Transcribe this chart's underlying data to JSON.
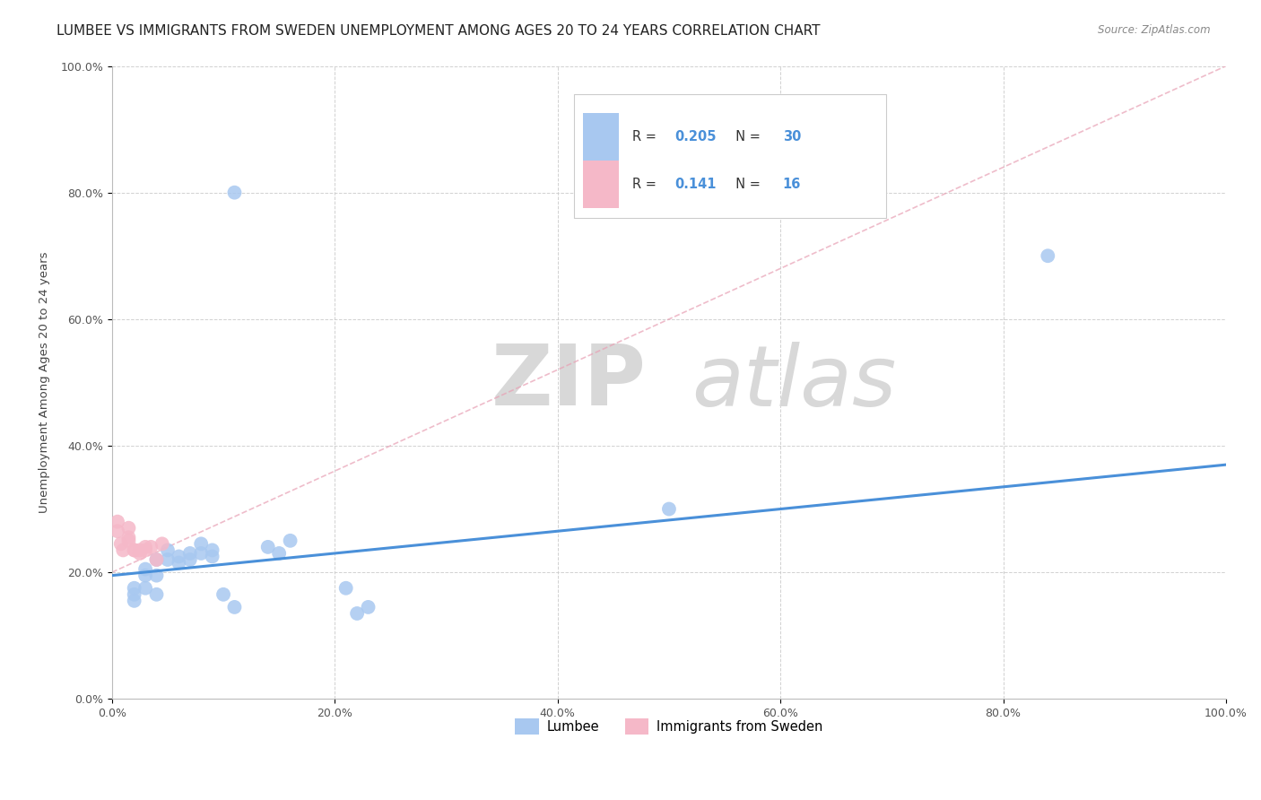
{
  "title": "LUMBEE VS IMMIGRANTS FROM SWEDEN UNEMPLOYMENT AMONG AGES 20 TO 24 YEARS CORRELATION CHART",
  "source": "Source: ZipAtlas.com",
  "ylabel": "Unemployment Among Ages 20 to 24 years",
  "xlabel": "",
  "watermark_zip": "ZIP",
  "watermark_atlas": "atlas",
  "xlim": [
    0.0,
    1.0
  ],
  "ylim": [
    0.0,
    1.0
  ],
  "xticks": [
    0.0,
    0.2,
    0.4,
    0.6,
    0.8,
    1.0
  ],
  "yticks": [
    0.0,
    0.2,
    0.4,
    0.6,
    0.8,
    1.0
  ],
  "xticklabels": [
    "0.0%",
    "20.0%",
    "40.0%",
    "60.0%",
    "80.0%",
    "100.0%"
  ],
  "yticklabels": [
    "0.0%",
    "20.0%",
    "40.0%",
    "60.0%",
    "80.0%",
    "100.0%"
  ],
  "lumbee_color": "#a8c8f0",
  "sweden_color": "#f5b8c8",
  "lumbee_R": "0.205",
  "lumbee_N": "30",
  "sweden_R": "0.141",
  "sweden_N": "16",
  "lumbee_x": [
    0.02,
    0.02,
    0.02,
    0.03,
    0.03,
    0.03,
    0.04,
    0.04,
    0.04,
    0.05,
    0.05,
    0.06,
    0.06,
    0.07,
    0.07,
    0.08,
    0.08,
    0.09,
    0.09,
    0.1,
    0.11,
    0.14,
    0.15,
    0.16,
    0.21,
    0.22,
    0.23,
    0.5,
    0.11,
    0.84
  ],
  "lumbee_y": [
    0.165,
    0.175,
    0.155,
    0.195,
    0.205,
    0.175,
    0.22,
    0.195,
    0.165,
    0.235,
    0.22,
    0.225,
    0.215,
    0.22,
    0.23,
    0.23,
    0.245,
    0.225,
    0.235,
    0.165,
    0.145,
    0.24,
    0.23,
    0.25,
    0.175,
    0.135,
    0.145,
    0.3,
    0.8,
    0.7
  ],
  "sweden_x": [
    0.005,
    0.005,
    0.008,
    0.01,
    0.015,
    0.015,
    0.015,
    0.02,
    0.02,
    0.025,
    0.025,
    0.03,
    0.03,
    0.035,
    0.04,
    0.045
  ],
  "sweden_y": [
    0.265,
    0.28,
    0.245,
    0.235,
    0.27,
    0.255,
    0.25,
    0.235,
    0.235,
    0.23,
    0.235,
    0.235,
    0.24,
    0.24,
    0.22,
    0.245
  ],
  "lumbee_line_x": [
    0.0,
    1.0
  ],
  "lumbee_line_y": [
    0.195,
    0.37
  ],
  "sweden_line_x": [
    0.0,
    1.0
  ],
  "sweden_line_y": [
    0.2,
    1.0
  ],
  "title_fontsize": 11,
  "axis_fontsize": 9.5,
  "tick_fontsize": 9,
  "label_color": "#555555",
  "background_color": "#ffffff",
  "grid_color": "#cccccc",
  "blue_accent": "#4a90d9",
  "pink_line": "#e8a0b4"
}
